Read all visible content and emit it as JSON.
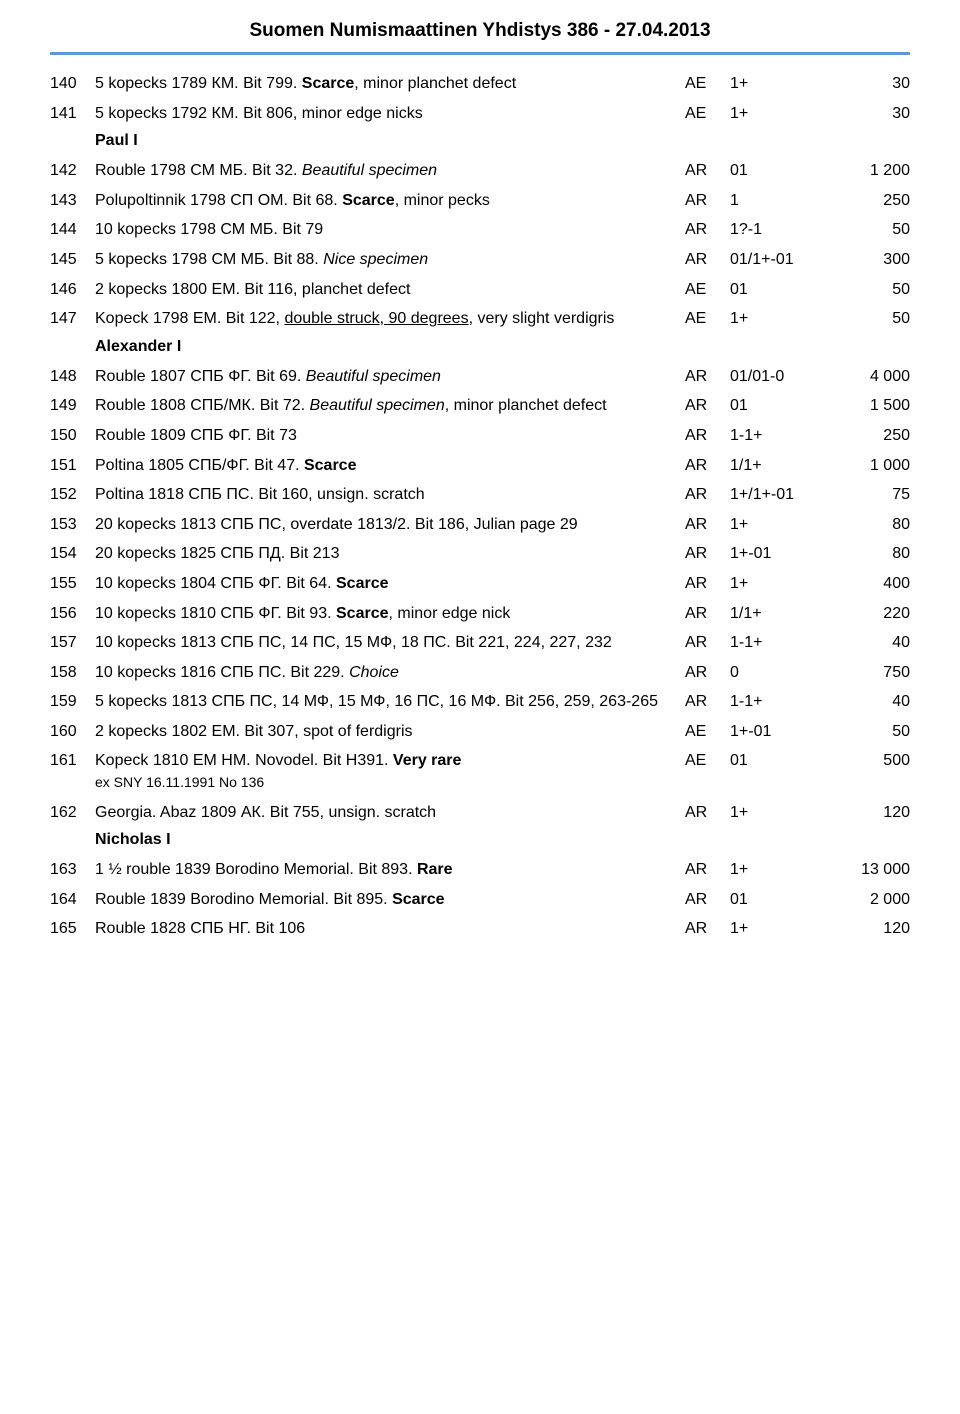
{
  "header": "Suomen Numismaattinen Yhdistys  386 - 27.04.2013",
  "rule_color": "#5b9bd5",
  "rows": [
    {
      "lot": "140",
      "desc": [
        {
          "t": "5 kopecks 1789 КМ. Bit 799. "
        },
        {
          "t": "Scarce",
          "b": true
        },
        {
          "t": ", minor planchet defect"
        }
      ],
      "mat": "AE",
      "grade": "1+",
      "price": "30"
    },
    {
      "lot": "141",
      "desc": [
        {
          "t": "5 kopecks 1792 КМ. Bit 806, minor edge nicks"
        }
      ],
      "mat": "AE",
      "grade": "1+",
      "price": "30"
    },
    {
      "section": "Paul I"
    },
    {
      "lot": "142",
      "desc": [
        {
          "t": "Rouble 1798 СМ МБ. Bit 32. "
        },
        {
          "t": "Beautiful specimen",
          "i": true
        }
      ],
      "mat": "AR",
      "grade": "01",
      "price": "1 200"
    },
    {
      "lot": "143",
      "desc": [
        {
          "t": "Polupoltinnik 1798 СП ОМ. Bit 68. "
        },
        {
          "t": "Scarce",
          "b": true
        },
        {
          "t": ", minor pecks"
        }
      ],
      "mat": "AR",
      "grade": "1",
      "price": "250"
    },
    {
      "lot": "144",
      "desc": [
        {
          "t": "10 kopecks 1798 СМ МБ. Bit 79"
        }
      ],
      "mat": "AR",
      "grade": "1?-1",
      "price": "50"
    },
    {
      "lot": "145",
      "desc": [
        {
          "t": "5 kopecks 1798 СМ МБ. Bit 88. "
        },
        {
          "t": "Nice specimen",
          "i": true
        }
      ],
      "mat": "AR",
      "grade": "01/1+-01",
      "price": "300"
    },
    {
      "lot": "146",
      "desc": [
        {
          "t": "2 kopecks 1800 ЕМ. Bit 116, planchet defect"
        }
      ],
      "mat": "AE",
      "grade": "01",
      "price": "50"
    },
    {
      "lot": "147",
      "desc": [
        {
          "t": "Kopeck 1798 ЕМ. Bit 122, "
        },
        {
          "t": "double struck, 90 degrees",
          "u": true
        },
        {
          "t": ", very slight verdigris"
        }
      ],
      "mat": "AE",
      "grade": "1+",
      "price": "50"
    },
    {
      "section": "Alexander I"
    },
    {
      "lot": "148",
      "desc": [
        {
          "t": "Rouble 1807 СПБ ФГ. Bit 69. "
        },
        {
          "t": "Beautiful specimen",
          "i": true
        }
      ],
      "mat": "AR",
      "grade": "01/01-0",
      "price": "4 000"
    },
    {
      "lot": "149",
      "desc": [
        {
          "t": "Rouble 1808 СПБ/МК. Bit 72. "
        },
        {
          "t": "Beautiful specimen",
          "i": true
        },
        {
          "t": ", minor planchet defect"
        }
      ],
      "mat": "AR",
      "grade": "01",
      "price": "1 500"
    },
    {
      "lot": "150",
      "desc": [
        {
          "t": "Rouble 1809 СПБ ФГ. Bit 73"
        }
      ],
      "mat": "AR",
      "grade": "1-1+",
      "price": "250"
    },
    {
      "lot": "151",
      "desc": [
        {
          "t": "Poltina 1805 СПБ/ФГ. Bit 47. "
        },
        {
          "t": "Scarce",
          "b": true
        }
      ],
      "mat": "AR",
      "grade": "1/1+",
      "price": "1 000"
    },
    {
      "lot": "152",
      "desc": [
        {
          "t": "Poltina 1818 СПБ ПС. Bit 160, unsign. scratch"
        }
      ],
      "mat": "AR",
      "grade": "1+/1+-01",
      "price": "75"
    },
    {
      "lot": "153",
      "desc": [
        {
          "t": "20 kopecks 1813 СПБ ПС, overdate 1813/2. Bit 186, Julian page 29"
        }
      ],
      "mat": "AR",
      "grade": "1+",
      "price": "80"
    },
    {
      "lot": "154",
      "desc": [
        {
          "t": "20 kopecks 1825 СПБ ПД. Bit 213"
        }
      ],
      "mat": "AR",
      "grade": "1+-01",
      "price": "80"
    },
    {
      "lot": "155",
      "desc": [
        {
          "t": "10 kopecks 1804 СПБ ФГ. Bit 64. "
        },
        {
          "t": "Scarce",
          "b": true
        }
      ],
      "mat": "AR",
      "grade": "1+",
      "price": "400"
    },
    {
      "lot": "156",
      "desc": [
        {
          "t": "10 kopecks 1810 СПБ ФГ. Bit 93. "
        },
        {
          "t": "Scarce",
          "b": true
        },
        {
          "t": ", minor edge nick"
        }
      ],
      "mat": "AR",
      "grade": "1/1+",
      "price": "220"
    },
    {
      "lot": "157",
      "desc": [
        {
          "t": "10 kopecks 1813 СПБ ПС, 14 ПС, 15 МФ, 18 ПС. Bit 221, 224, 227, 232"
        }
      ],
      "mat": "AR",
      "grade": "1-1+",
      "price": "40"
    },
    {
      "lot": "158",
      "desc": [
        {
          "t": "10 kopecks 1816 СПБ ПС. Bit 229. "
        },
        {
          "t": "Choice",
          "i": true
        }
      ],
      "mat": "AR",
      "grade": "0",
      "price": "750"
    },
    {
      "lot": "159",
      "desc": [
        {
          "t": "5 kopecks 1813 СПБ ПС, 14 МФ, 15 МФ, 16 ПС, 16 МФ. Bit 256, 259, 263-265"
        }
      ],
      "mat": "AR",
      "grade": "1-1+",
      "price": "40"
    },
    {
      "lot": "160",
      "desc": [
        {
          "t": "2 kopecks 1802 ЕМ. Bit 307, spot of ferdigris"
        }
      ],
      "mat": "AE",
      "grade": "1+-01",
      "price": "50"
    },
    {
      "lot": "161",
      "desc": [
        {
          "t": "Kopeck 1810 ЕМ НМ. Novodel. Bit Н391. "
        },
        {
          "t": "Very rare",
          "b": true
        }
      ],
      "sub": "ex SNY 16.11.1991 No 136",
      "mat": "AE",
      "grade": "01",
      "price": "500"
    },
    {
      "lot": "162",
      "desc": [
        {
          "t": "Georgia. Abaz 1809 АК. Bit 755, unsign. scratch"
        }
      ],
      "mat": "AR",
      "grade": "1+",
      "price": "120"
    },
    {
      "section": "Nicholas I"
    },
    {
      "lot": "163",
      "desc": [
        {
          "t": "1 ½ rouble 1839 Borodino Memorial. Bit 893. "
        },
        {
          "t": "Rare",
          "b": true
        }
      ],
      "mat": "AR",
      "grade": "1+",
      "price": "13 000"
    },
    {
      "lot": "164",
      "desc": [
        {
          "t": "Rouble 1839 Borodino Memorial. Bit 895. "
        },
        {
          "t": "Scarce",
          "b": true
        }
      ],
      "mat": "AR",
      "grade": "01",
      "price": "2 000"
    },
    {
      "lot": "165",
      "desc": [
        {
          "t": "Rouble 1828 СПБ НГ. Bit 106"
        }
      ],
      "mat": "AR",
      "grade": "1+",
      "price": "120"
    }
  ]
}
